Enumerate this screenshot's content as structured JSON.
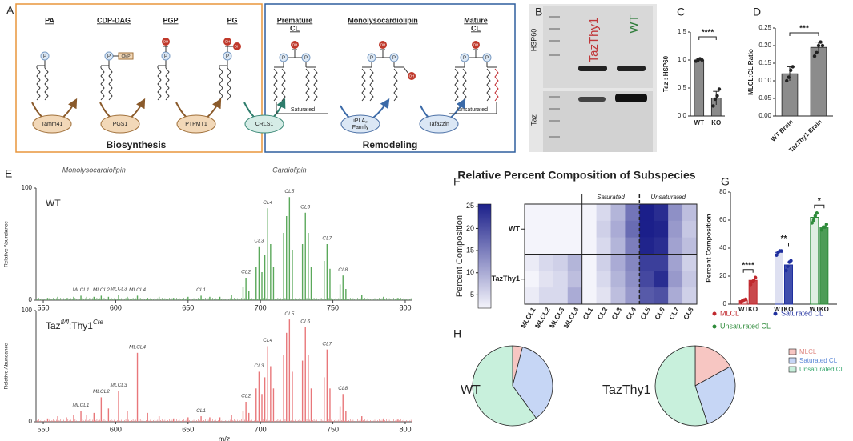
{
  "panels": [
    "A",
    "B",
    "C",
    "D",
    "E",
    "F",
    "G",
    "H"
  ],
  "diagram": {
    "steps": [
      [
        "PA"
      ],
      [
        "CDP-DAG"
      ],
      [
        "PGP"
      ],
      [
        "PG"
      ],
      [
        "Premature",
        "CL"
      ],
      [
        "Monolysocardiolipin"
      ],
      [
        "Mature",
        "CL"
      ]
    ],
    "cmp": "CMP",
    "phosphate": "P",
    "hydroxyl": "OH",
    "enzymes": [
      [
        "Tamm41"
      ],
      [
        "PGS1"
      ],
      [
        "PTPMT1"
      ],
      [
        "CRLS1"
      ],
      [
        "iPLA₂",
        "Family"
      ],
      [
        "Tafazzin"
      ]
    ],
    "saturated": "Saturated",
    "unsaturated": "Unsaturated",
    "sections": [
      "Biosynthesis",
      "Remodeling"
    ]
  },
  "blot": {
    "lanes": [
      "TazThy1",
      "WT"
    ],
    "proteins": [
      "HSP60",
      "Taz"
    ]
  },
  "chart_data": [
    {
      "type": "bar",
      "ylabel": "Taz : HSP60",
      "categories": [
        "WT",
        "KO"
      ],
      "values": [
        1.0,
        0.32
      ],
      "errors": [
        0.03,
        0.12
      ],
      "points": [
        [
          0.98,
          1.0,
          1.02,
          1.0
        ],
        [
          0.18,
          0.3,
          0.36,
          0.48
        ]
      ],
      "ylim": [
        0,
        1.5
      ],
      "yticks": [
        {
          "value": 0,
          "label": "0.0"
        },
        {
          "value": 0.5,
          "label": "0.5"
        },
        {
          "value": 1,
          "label": "1.0"
        },
        {
          "value": 1.5,
          "label": "1.5"
        }
      ],
      "significance": "****",
      "color": "#8c8c8c"
    },
    {
      "type": "bar",
      "ylabel": "MLCL:CL Ratio",
      "categories": [
        "WT Brain",
        "TazThy1 Brain"
      ],
      "values": [
        0.12,
        0.195
      ],
      "errors": [
        0.02,
        0.015
      ],
      "points": [
        [
          0.1,
          0.11,
          0.13,
          0.14
        ],
        [
          0.17,
          0.18,
          0.2,
          0.21,
          0.2
        ]
      ],
      "ylim": [
        0,
        0.25
      ],
      "yticks": [
        {
          "value": 0,
          "label": "0.00"
        },
        {
          "value": 0.05,
          "label": "0.05"
        },
        {
          "value": 0.1,
          "label": "0.10"
        },
        {
          "value": 0.15,
          "label": "0.15"
        },
        {
          "value": 0.2,
          "label": "0.20"
        },
        {
          "value": 0.25,
          "label": "0.25"
        }
      ],
      "significance": "***",
      "color": "#8c8c8c"
    },
    {
      "type": "spectrum",
      "title_parts": [
        "WT"
      ],
      "annotations": [
        "Monolysocardiolipin",
        "Cardiolipin"
      ],
      "annotation_x": [
        585,
        720
      ],
      "ylabel": "Relative Abundance",
      "xlim": [
        545,
        805
      ],
      "xticks": [
        550,
        600,
        650,
        700,
        750,
        800
      ],
      "ylim": [
        0,
        100
      ],
      "yticks": [
        0,
        100
      ],
      "color": "#5aa85a",
      "x": [
        553,
        560,
        566,
        571,
        576,
        580,
        585,
        590,
        595,
        602,
        608,
        615,
        622,
        630,
        640,
        650,
        659,
        665,
        672,
        680,
        688,
        690,
        692,
        697,
        699,
        701,
        703,
        705,
        707,
        709,
        716,
        718,
        720,
        722,
        729,
        731,
        733,
        735,
        744,
        746,
        748,
        755,
        757,
        759,
        770,
        785,
        795
      ],
      "values": [
        2,
        3,
        2,
        3,
        4,
        3,
        3,
        4,
        3,
        5,
        3,
        4,
        2,
        3,
        2,
        3,
        4,
        3,
        3,
        5,
        12,
        20,
        8,
        30,
        48,
        25,
        40,
        82,
        50,
        30,
        60,
        75,
        92,
        45,
        50,
        78,
        60,
        30,
        35,
        50,
        28,
        14,
        22,
        10,
        5,
        3,
        2
      ],
      "peak_labels": [
        "MLCL1",
        "MLCL2",
        "MLCL3",
        "MLCL4",
        "CL1",
        "CL2",
        "CL3",
        "CL4",
        "CL5",
        "CL6",
        "CL7",
        "CL8"
      ],
      "peak_label_x": [
        576,
        590,
        602,
        615,
        659,
        690,
        699,
        705,
        720,
        731,
        746,
        757
      ]
    },
    {
      "type": "spectrum",
      "title_parts": [
        "Taz",
        "fl/fl",
        ":Thy1",
        "Cre"
      ],
      "ylabel": "Relative Abundance",
      "xlabel": "m/z",
      "xlim": [
        545,
        805
      ],
      "xticks": [
        550,
        600,
        650,
        700,
        750,
        800
      ],
      "ylim": [
        0,
        100
      ],
      "yticks": [
        0,
        100
      ],
      "color": "#e8777a",
      "x": [
        553,
        560,
        566,
        571,
        576,
        580,
        585,
        590,
        595,
        602,
        608,
        615,
        622,
        630,
        640,
        650,
        659,
        665,
        672,
        680,
        688,
        690,
        692,
        697,
        699,
        701,
        703,
        705,
        707,
        709,
        716,
        718,
        720,
        722,
        729,
        731,
        733,
        735,
        744,
        746,
        748,
        755,
        757,
        759,
        770,
        785,
        795
      ],
      "values": [
        3,
        5,
        4,
        6,
        10,
        6,
        8,
        22,
        12,
        28,
        10,
        62,
        8,
        5,
        3,
        4,
        5,
        4,
        4,
        6,
        10,
        18,
        8,
        30,
        45,
        25,
        40,
        68,
        50,
        30,
        60,
        80,
        92,
        45,
        55,
        85,
        60,
        30,
        40,
        65,
        30,
        14,
        25,
        10,
        5,
        3,
        2
      ],
      "peak_labels": [
        "MLCL1",
        "MLCL2",
        "MLCL3",
        "MLCL4",
        "CL1",
        "CL2",
        "CL3",
        "CL4",
        "CL5",
        "CL6",
        "CL7",
        "CL8"
      ],
      "peak_label_x": [
        576,
        590,
        602,
        615,
        659,
        690,
        699,
        705,
        720,
        731,
        746,
        757
      ]
    },
    {
      "type": "heatmap",
      "title": "Relative Percent Composition of Subspecies",
      "colorbar_label": "Percent Composition",
      "clim": [
        2,
        25.5
      ],
      "cticks": [
        5,
        10,
        15,
        20,
        25
      ],
      "color": "#1b1f8a",
      "columns": [
        "MLCL1",
        "MLCL2",
        "MLCL3",
        "MLCL4",
        "CL1",
        "CL2",
        "CL3",
        "CL4",
        "CL5",
        "CL6",
        "CL7",
        "CL8"
      ],
      "row_groups": [
        "WT",
        "TazThy1"
      ],
      "column_groups": [
        "Saturated",
        "Unsaturated"
      ],
      "values": [
        [
          0.5,
          0.5,
          0.6,
          0.8,
          1,
          5,
          9,
          16,
          26,
          24,
          13,
          8
        ],
        [
          0.4,
          0.4,
          0.5,
          0.6,
          1.5,
          6,
          10,
          17,
          27,
          25,
          12,
          7
        ],
        [
          0.3,
          0.3,
          0.5,
          0.5,
          1,
          5,
          9,
          15,
          25,
          24,
          11,
          8
        ],
        [
          3,
          5,
          6,
          9,
          1.5,
          6,
          10,
          14,
          22,
          22,
          11,
          6
        ],
        [
          2,
          4,
          5,
          8,
          1,
          5,
          9,
          13,
          21,
          24,
          12,
          7
        ],
        [
          3,
          5,
          5,
          10,
          1,
          4,
          8,
          12,
          19,
          20,
          10,
          6
        ]
      ]
    },
    {
      "type": "grouped_bar",
      "ylabel": "Percent Composition",
      "categories": [
        "WT",
        "KO"
      ],
      "ylim": [
        0,
        80
      ],
      "yticks": [
        0,
        20,
        40,
        60,
        80
      ],
      "significance": [
        "****",
        "**",
        "*"
      ],
      "series": [
        {
          "name": "MLCL",
          "color": "#c0282d",
          "values": [
            2.5,
            17
          ],
          "points": [
            [
              1.5,
              2.5,
              3,
              3.5
            ],
            [
              14,
              16,
              17,
              19
            ]
          ]
        },
        {
          "name": "Saturated CL",
          "color": "#1f2f9e",
          "values": [
            37,
            28
          ],
          "points": [
            [
              35,
              37,
              38,
              38
            ],
            [
              24,
              27,
              30,
              31
            ]
          ]
        },
        {
          "name": "Unsaturated CL",
          "color": "#2e8b3a",
          "values": [
            62,
            55
          ],
          "points": [
            [
              58,
              60,
              63,
              65
            ],
            [
              53,
              55,
              55,
              57
            ]
          ]
        }
      ]
    },
    {
      "type": "pie",
      "categories": [
        "MLCL",
        "Saturated CL",
        "Unsaturated CL"
      ],
      "colors": [
        "#f7c6c2",
        "#c6d6f5",
        "#c8f0dc"
      ],
      "pies": [
        {
          "name": "WT",
          "values": [
            4,
            36,
            60
          ]
        },
        {
          "name": "TazThy1",
          "values": [
            17,
            28,
            55
          ]
        }
      ]
    }
  ]
}
